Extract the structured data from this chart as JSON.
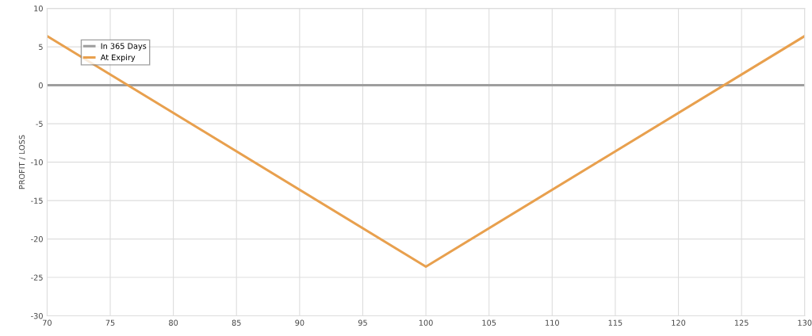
{
  "chart_data": {
    "type": "line",
    "ylabel": "PROFIT / LOSS",
    "series": [
      {
        "name": "In 365 Days",
        "color": "#9e9e9e",
        "x": [
          70,
          130
        ],
        "values": [
          0,
          0
        ]
      },
      {
        "name": "At Expiry",
        "color": "#e8a04e",
        "x": [
          70,
          100,
          130
        ],
        "values": [
          6.4,
          -23.6,
          6.4
        ]
      }
    ],
    "xlim": [
      70,
      130
    ],
    "xticks": [
      70,
      75,
      80,
      85,
      90,
      95,
      100,
      105,
      110,
      115,
      120,
      125,
      130
    ],
    "ylim": [
      -30,
      10
    ],
    "yticks": [
      -30,
      -25,
      -20,
      -15,
      -10,
      -5,
      0,
      5,
      10
    ],
    "grid": true,
    "legend": "top left",
    "marker": "none",
    "line_style": "solid"
  }
}
